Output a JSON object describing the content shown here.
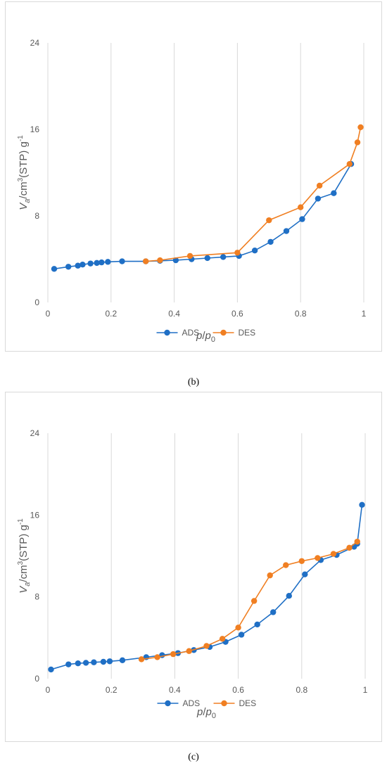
{
  "colors": {
    "ads": "#1f6fc5",
    "des": "#f07f22",
    "grid": "#d9d9d9"
  },
  "captions": {
    "b": "(b)",
    "c": "(c)"
  },
  "chart_data": [
    {
      "type": "scatter",
      "panel": "b",
      "title": "",
      "xlabel": "p/p0",
      "ylabel": "Va/cm3(STP) g-1",
      "xlim": [
        0,
        1
      ],
      "ylim": [
        0,
        24
      ],
      "xticks": [
        "0",
        "0.2",
        "0.4",
        "0.6",
        "0.8",
        "1"
      ],
      "yticks": [
        "0",
        "8",
        "16",
        "24"
      ],
      "grid": "vertical",
      "legend": "bottom",
      "series": [
        {
          "name": "ADS",
          "color": "#1f6fc5",
          "points": [
            [
              0.02,
              3.1
            ],
            [
              0.065,
              3.3
            ],
            [
              0.095,
              3.4
            ],
            [
              0.11,
              3.5
            ],
            [
              0.135,
              3.6
            ],
            [
              0.155,
              3.65
            ],
            [
              0.17,
              3.7
            ],
            [
              0.19,
              3.75
            ],
            [
              0.235,
              3.8
            ],
            [
              0.31,
              3.8
            ],
            [
              0.355,
              3.85
            ],
            [
              0.405,
              3.9
            ],
            [
              0.455,
              4.0
            ],
            [
              0.505,
              4.1
            ],
            [
              0.555,
              4.2
            ],
            [
              0.605,
              4.3
            ],
            [
              0.655,
              4.8
            ],
            [
              0.705,
              5.6
            ],
            [
              0.755,
              6.6
            ],
            [
              0.805,
              7.7
            ],
            [
              0.855,
              9.6
            ],
            [
              0.905,
              10.1
            ],
            [
              0.96,
              12.8
            ]
          ]
        },
        {
          "name": "DES",
          "color": "#f07f22",
          "points": [
            [
              0.31,
              3.8
            ],
            [
              0.355,
              3.9
            ],
            [
              0.45,
              4.3
            ],
            [
              0.6,
              4.6
            ],
            [
              0.7,
              7.6
            ],
            [
              0.8,
              8.8
            ],
            [
              0.86,
              10.8
            ],
            [
              0.955,
              12.8
            ],
            [
              0.98,
              14.8
            ],
            [
              0.99,
              16.2
            ]
          ]
        }
      ]
    },
    {
      "type": "scatter",
      "panel": "c",
      "title": "",
      "xlabel": "p/p0",
      "ylabel": "Va/cm3(STP) g-1",
      "xlim": [
        0,
        1
      ],
      "ylim": [
        0,
        24
      ],
      "xticks": [
        "0",
        "0.2",
        "0.4",
        "0.6",
        "0.8",
        "1"
      ],
      "yticks": [
        "0",
        "8",
        "16",
        "24"
      ],
      "grid": "vertical",
      "legend": "bottom",
      "series": [
        {
          "name": "ADS",
          "color": "#1f6fc5",
          "points": [
            [
              0.01,
              0.9
            ],
            [
              0.065,
              1.4
            ],
            [
              0.095,
              1.5
            ],
            [
              0.12,
              1.55
            ],
            [
              0.145,
              1.6
            ],
            [
              0.175,
              1.65
            ],
            [
              0.195,
              1.7
            ],
            [
              0.235,
              1.8
            ],
            [
              0.31,
              2.1
            ],
            [
              0.36,
              2.3
            ],
            [
              0.41,
              2.5
            ],
            [
              0.46,
              2.8
            ],
            [
              0.51,
              3.1
            ],
            [
              0.56,
              3.6
            ],
            [
              0.61,
              4.3
            ],
            [
              0.66,
              5.3
            ],
            [
              0.71,
              6.5
            ],
            [
              0.76,
              8.1
            ],
            [
              0.81,
              10.2
            ],
            [
              0.86,
              11.6
            ],
            [
              0.91,
              12.1
            ],
            [
              0.965,
              12.9
            ],
            [
              0.975,
              13.2
            ],
            [
              0.99,
              17.0
            ]
          ]
        },
        {
          "name": "DES",
          "color": "#f07f22",
          "points": [
            [
              0.295,
              1.9
            ],
            [
              0.345,
              2.1
            ],
            [
              0.395,
              2.4
            ],
            [
              0.445,
              2.7
            ],
            [
              0.5,
              3.2
            ],
            [
              0.55,
              3.9
            ],
            [
              0.6,
              5.0
            ],
            [
              0.65,
              7.6
            ],
            [
              0.7,
              10.1
            ],
            [
              0.75,
              11.1
            ],
            [
              0.8,
              11.5
            ],
            [
              0.85,
              11.8
            ],
            [
              0.9,
              12.2
            ],
            [
              0.95,
              12.8
            ],
            [
              0.975,
              13.4
            ]
          ]
        }
      ]
    }
  ]
}
